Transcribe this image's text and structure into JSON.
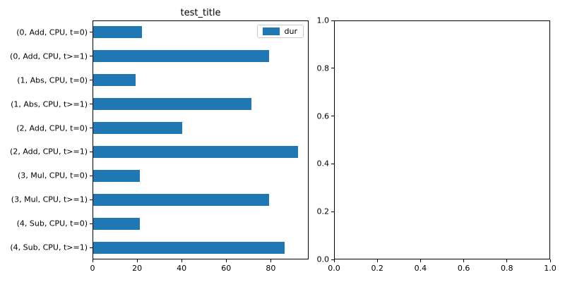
{
  "figure": {
    "background": "#ffffff",
    "text_color": "#000000"
  },
  "chart_data": [
    {
      "type": "bar",
      "orientation": "horizontal",
      "title": "test_title",
      "categories": [
        "(0, Add, CPU, t=0)",
        "(0, Add, CPU, t>=1)",
        "(1, Abs, CPU, t=0)",
        "(1, Abs, CPU, t>=1)",
        "(2, Add, CPU, t=0)",
        "(2, Add, CPU, t>=1)",
        "(3, Mul, CPU, t=0)",
        "(3, Mul, CPU, t>=1)",
        "(4, Sub, CPU, t=0)",
        "(4, Sub, CPU, t>=1)"
      ],
      "values": [
        22,
        79,
        19,
        71,
        40,
        92,
        21,
        79,
        21,
        86
      ],
      "series_name": "dur",
      "bar_color": "#1f77b4",
      "xlim": [
        0,
        97
      ],
      "x_ticks": [
        "0",
        "20",
        "40",
        "60",
        "80"
      ],
      "x_tick_values": [
        0,
        20,
        40,
        60,
        80
      ],
      "legend": {
        "label": "dur",
        "position": "upper right"
      },
      "grid": false
    },
    {
      "type": "empty",
      "title": "",
      "xlim": [
        0,
        1
      ],
      "ylim": [
        0,
        1
      ],
      "x_ticks": [
        "0.0",
        "0.2",
        "0.4",
        "0.6",
        "0.8",
        "1.0"
      ],
      "x_tick_values": [
        0,
        0.2,
        0.4,
        0.6,
        0.8,
        1.0
      ],
      "y_ticks": [
        "0.0",
        "0.2",
        "0.4",
        "0.6",
        "0.8",
        "1.0"
      ],
      "y_tick_values": [
        0,
        0.2,
        0.4,
        0.6,
        0.8,
        1.0
      ],
      "grid": false
    }
  ]
}
